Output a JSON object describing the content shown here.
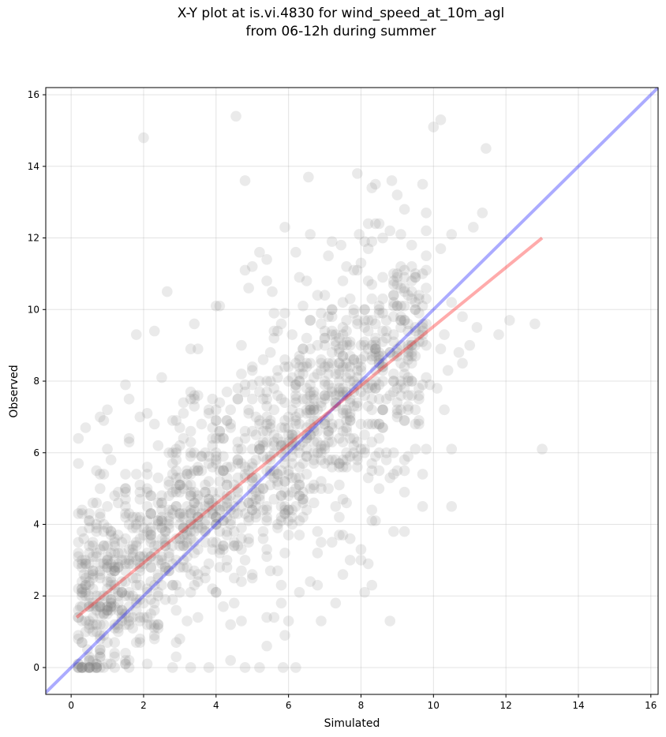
{
  "chart_data": {
    "type": "scatter",
    "title_line1": "X-Y plot at is.vi.4830 for wind_speed_at_10m_agl",
    "title_line2": "from 06-12h during summer",
    "xlabel": "Simulated",
    "ylabel": "Observed",
    "xlim": [
      -0.7,
      16.2
    ],
    "ylim": [
      -0.75,
      16.2
    ],
    "xticks": [
      0,
      2,
      4,
      6,
      8,
      10,
      12,
      14,
      16
    ],
    "yticks": [
      0,
      2,
      4,
      6,
      8,
      10,
      12,
      14,
      16
    ],
    "grid": true,
    "point_color": "#808080",
    "identity_line": {
      "color": "#0000ff",
      "x": [
        -0.7,
        16.2
      ],
      "y": [
        -0.7,
        16.2
      ]
    },
    "fit_line": {
      "color": "#ff0000",
      "x": [
        0.15,
        13.0
      ],
      "y": [
        1.4,
        12.0
      ]
    },
    "points": [
      [
        4.55,
        15.4
      ],
      [
        2.0,
        14.8
      ],
      [
        10.2,
        15.3
      ],
      [
        10.0,
        15.1
      ],
      [
        11.45,
        14.5
      ],
      [
        4.8,
        13.6
      ],
      [
        6.55,
        13.7
      ],
      [
        7.9,
        13.8
      ],
      [
        8.3,
        13.4
      ],
      [
        8.4,
        13.5
      ],
      [
        8.85,
        13.6
      ],
      [
        9.7,
        13.5
      ],
      [
        11.35,
        12.7
      ],
      [
        11.1,
        12.3
      ],
      [
        8.4,
        12.4
      ],
      [
        8.5,
        12.4
      ],
      [
        8.8,
        12.2
      ],
      [
        9.1,
        12.1
      ],
      [
        5.9,
        12.3
      ],
      [
        6.6,
        12.1
      ],
      [
        7.95,
        12.1
      ],
      [
        10.5,
        12.1
      ],
      [
        7.2,
        11.9
      ],
      [
        7.45,
        11.8
      ],
      [
        8.1,
        11.9
      ],
      [
        8.6,
        12.0
      ],
      [
        8.2,
        11.7
      ],
      [
        5.2,
        11.6
      ],
      [
        4.8,
        11.1
      ],
      [
        5.0,
        11.2
      ],
      [
        5.4,
        11.4
      ],
      [
        6.2,
        11.6
      ],
      [
        7.1,
        11.5
      ],
      [
        8.0,
        11.3
      ],
      [
        9.8,
        11.5
      ],
      [
        10.2,
        11.7
      ],
      [
        12.1,
        9.7
      ],
      [
        11.8,
        9.3
      ],
      [
        12.8,
        9.6
      ],
      [
        13.0,
        6.1
      ],
      [
        2.65,
        10.5
      ],
      [
        5.55,
        10.5
      ],
      [
        5.4,
        10.8
      ],
      [
        6.3,
        10.9
      ],
      [
        6.5,
        10.8
      ],
      [
        4.9,
        10.6
      ],
      [
        7.5,
        10.8
      ],
      [
        8.3,
        10.7
      ],
      [
        8.6,
        10.9
      ],
      [
        9.0,
        10.7
      ],
      [
        9.4,
        10.5
      ],
      [
        9.5,
        10.9
      ],
      [
        9.7,
        10.1
      ],
      [
        10.5,
        10.2
      ],
      [
        10.8,
        9.8
      ],
      [
        11.0,
        9.0
      ],
      [
        10.3,
        9.3
      ],
      [
        10.2,
        8.9
      ],
      [
        10.4,
        8.3
      ],
      [
        10.7,
        8.8
      ],
      [
        10.8,
        8.5
      ],
      [
        11.2,
        9.5
      ],
      [
        10.5,
        6.1
      ],
      [
        10.5,
        4.5
      ],
      [
        9.7,
        4.5
      ],
      [
        9.7,
        5.4
      ],
      [
        9.9,
        7.9
      ],
      [
        10.1,
        7.8
      ],
      [
        10.3,
        7.2
      ],
      [
        8.8,
        1.3
      ],
      [
        8.3,
        2.3
      ],
      [
        8.1,
        2.1
      ],
      [
        8.0,
        3.0
      ],
      [
        8.0,
        3.3
      ],
      [
        7.3,
        1.8
      ],
      [
        6.9,
        1.3
      ],
      [
        9.2,
        3.8
      ],
      [
        8.9,
        3.8
      ],
      [
        1.8,
        9.3
      ],
      [
        2.3,
        9.4
      ],
      [
        1.5,
        7.9
      ],
      [
        4.0,
        10.1
      ],
      [
        4.1,
        10.1
      ],
      [
        3.3,
        8.9
      ],
      [
        3.5,
        8.9
      ],
      [
        2.1,
        7.1
      ],
      [
        1.0,
        7.2
      ],
      [
        0.8,
        7.0
      ],
      [
        0.2,
        6.4
      ],
      [
        0.4,
        6.7
      ],
      [
        0.7,
        5.5
      ],
      [
        0.3,
        4.4
      ],
      [
        0.3,
        4.3
      ],
      [
        0.6,
        4.6
      ],
      [
        0.35,
        3.6
      ],
      [
        0.35,
        2.6
      ],
      [
        0.25,
        1.7
      ],
      [
        0.2,
        1.4
      ],
      [
        0.45,
        0.5
      ],
      [
        0.5,
        0.0
      ],
      [
        5.85,
        0.0
      ],
      [
        6.2,
        0.0
      ],
      [
        5.2,
        0.0
      ],
      [
        5.4,
        0.6
      ],
      [
        4.4,
        0.2
      ],
      [
        2.9,
        0.3
      ],
      [
        3.3,
        0.0
      ],
      [
        3.8,
        0.0
      ],
      [
        4.8,
        0.0
      ],
      [
        5.9,
        0.9
      ],
      [
        6.0,
        1.3
      ],
      [
        5.8,
        1.8
      ],
      [
        6.3,
        2.1
      ],
      [
        6.8,
        2.3
      ],
      [
        7.5,
        2.6
      ],
      [
        7.7,
        3.0
      ],
      [
        8.5,
        5.5
      ],
      [
        9.0,
        5.5
      ],
      [
        9.2,
        5.8
      ],
      [
        9.5,
        6.1
      ]
    ]
  }
}
